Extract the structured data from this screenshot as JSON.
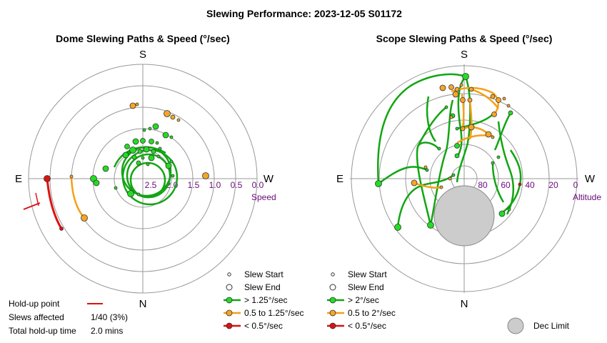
{
  "title": "Slewing Performance: 2023-12-05 S01172",
  "colors": {
    "green": "#12a512",
    "green_fill": "#22dd22",
    "orange": "#f4a018",
    "orange_fill": "#f7a526",
    "red": "#dd1111",
    "ring": "#999999",
    "axis_label": "#6a0a7a",
    "dec_fill": "#cccccc"
  },
  "chart_data": [
    {
      "type": "polar",
      "title": "Dome Slewing Paths & Speed (°/sec)",
      "directions": {
        "top": "S",
        "bottom": "N",
        "left": "E",
        "right": "W"
      },
      "radial_axis_name": "Speed",
      "radial_ticks": [
        "2.5",
        "2.0",
        "1.5",
        "1.0",
        "0.5",
        "0.0"
      ],
      "legend": [
        {
          "label": "Slew Start",
          "marker": "small-open-circle"
        },
        {
          "label": "Slew End",
          "marker": "large-open-circle"
        },
        {
          "label": "> 1.25°/sec",
          "color": "green"
        },
        {
          "label": "0.5 to 1.25°/sec",
          "color": "orange"
        },
        {
          "label": "< 0.5°/sec",
          "color": "red"
        }
      ],
      "holdup": {
        "point_label": "Hold-up point",
        "slews_label": "Slews affected",
        "slews_value": "1/40 (3%)",
        "time_label": "Total hold-up time",
        "time_value": "2.0 mins"
      }
    },
    {
      "type": "polar",
      "title": "Scope Slewing Paths & Speed (°/sec)",
      "directions": {
        "top": "S",
        "bottom": "N",
        "left": "E",
        "right": "W"
      },
      "radial_axis_name": "Altitude",
      "radial_ticks": [
        "80",
        "60",
        "40",
        "20",
        "0"
      ],
      "legend": [
        {
          "label": "Slew Start",
          "marker": "small-open-circle"
        },
        {
          "label": "Slew End",
          "marker": "large-open-circle"
        },
        {
          "label": "> 2°/sec",
          "color": "green"
        },
        {
          "label": "0.5 to 2°/sec",
          "color": "orange"
        },
        {
          "label": "< 0.5°/sec",
          "color": "red"
        }
      ],
      "dec_limit_label": "Dec Limit"
    }
  ]
}
